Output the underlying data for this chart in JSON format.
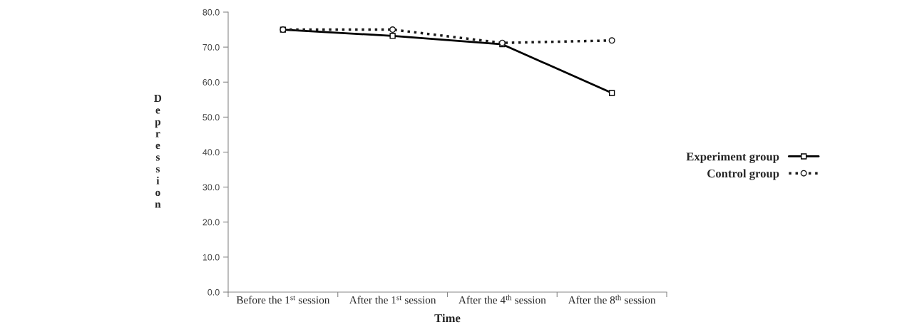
{
  "chart_data": {
    "type": "line",
    "xlabel": "Time",
    "ylabel": "Depression",
    "categories": [
      "Before the 1$^{st}$ session",
      "After the 1$^{st}$ session",
      "After the 4$^{th}$ session",
      "After the 8$^{th}$ session"
    ],
    "series": [
      {
        "name": "Experiment group",
        "color": "#000000",
        "values": [
          75.0,
          73.2,
          70.8,
          56.9
        ],
        "marker": "square",
        "line_style": "solid"
      },
      {
        "name": "Control group",
        "color": "#1a1a1a",
        "values": [
          75.0,
          75.0,
          71.2,
          71.9
        ],
        "marker": "circle",
        "line_style": "dotted"
      }
    ],
    "ylim": [
      0,
      80
    ],
    "yticks": [
      {
        "value": 0,
        "label": "0.0"
      },
      {
        "value": 10,
        "label": "10.0"
      },
      {
        "value": 20,
        "label": "20.0"
      },
      {
        "value": 30,
        "label": "30.0"
      },
      {
        "value": 40,
        "label": "40.0"
      },
      {
        "value": 50,
        "label": "50.0"
      },
      {
        "value": 60,
        "label": "60.0"
      },
      {
        "value": 70,
        "label": "70.0"
      },
      {
        "value": 80,
        "label": "80.0"
      }
    ],
    "grid": false,
    "legend": "right"
  }
}
